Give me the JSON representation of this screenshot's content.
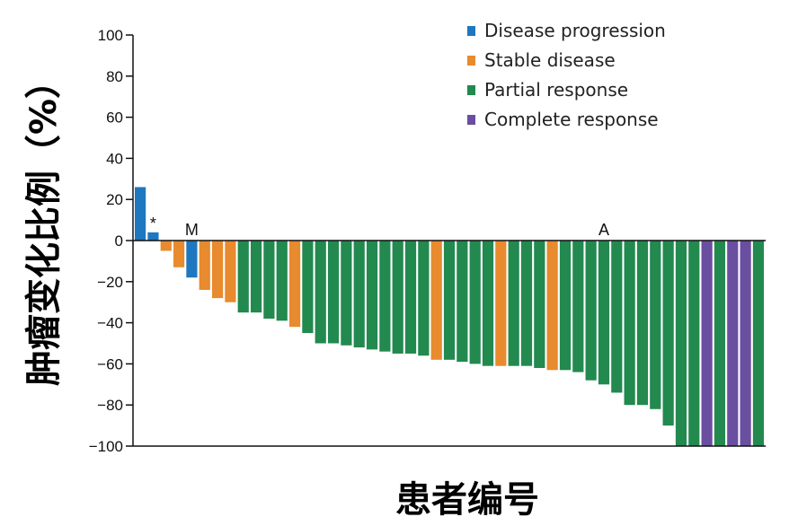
{
  "chart_data": {
    "type": "bar",
    "xlabel": "患者编号",
    "ylabel": "肿瘤变化比例（%）",
    "ylim": [
      -100,
      100
    ],
    "yticks": [
      100,
      80,
      60,
      40,
      20,
      0,
      -20,
      -40,
      -60,
      -80,
      -100
    ],
    "ytick_labels": [
      "100",
      "80",
      "60",
      "40",
      "20",
      "0",
      "−20",
      "−40",
      "−60",
      "−80",
      "−100"
    ],
    "legend_position": "top-right",
    "colors": {
      "Disease progression": "#1f77c0",
      "Stable disease": "#e88a2e",
      "Partial response": "#22894f",
      "Complete response": "#6a4ea0"
    },
    "legend": [
      "Disease progression",
      "Stable disease",
      "Partial response",
      "Complete response"
    ],
    "bars": [
      {
        "value": 26,
        "category": "Disease progression"
      },
      {
        "value": 4,
        "category": "Disease progression"
      },
      {
        "value": -5,
        "category": "Stable disease"
      },
      {
        "value": -13,
        "category": "Stable disease"
      },
      {
        "value": -18,
        "category": "Disease progression"
      },
      {
        "value": -24,
        "category": "Stable disease"
      },
      {
        "value": -28,
        "category": "Stable disease"
      },
      {
        "value": -30,
        "category": "Stable disease"
      },
      {
        "value": -35,
        "category": "Partial response"
      },
      {
        "value": -35,
        "category": "Partial response"
      },
      {
        "value": -38,
        "category": "Partial response"
      },
      {
        "value": -39,
        "category": "Partial response"
      },
      {
        "value": -42,
        "category": "Stable disease"
      },
      {
        "value": -45,
        "category": "Partial response"
      },
      {
        "value": -50,
        "category": "Partial response"
      },
      {
        "value": -50,
        "category": "Partial response"
      },
      {
        "value": -51,
        "category": "Partial response"
      },
      {
        "value": -52,
        "category": "Partial response"
      },
      {
        "value": -53,
        "category": "Partial response"
      },
      {
        "value": -54,
        "category": "Partial response"
      },
      {
        "value": -55,
        "category": "Partial response"
      },
      {
        "value": -55,
        "category": "Partial response"
      },
      {
        "value": -56,
        "category": "Partial response"
      },
      {
        "value": -58,
        "category": "Stable disease"
      },
      {
        "value": -58,
        "category": "Partial response"
      },
      {
        "value": -59,
        "category": "Partial response"
      },
      {
        "value": -60,
        "category": "Partial response"
      },
      {
        "value": -61,
        "category": "Partial response"
      },
      {
        "value": -61,
        "category": "Stable disease"
      },
      {
        "value": -61,
        "category": "Partial response"
      },
      {
        "value": -61,
        "category": "Partial response"
      },
      {
        "value": -62,
        "category": "Partial response"
      },
      {
        "value": -63,
        "category": "Stable disease"
      },
      {
        "value": -63,
        "category": "Partial response"
      },
      {
        "value": -64,
        "category": "Partial response"
      },
      {
        "value": -68,
        "category": "Partial response"
      },
      {
        "value": -70,
        "category": "Partial response"
      },
      {
        "value": -74,
        "category": "Partial response"
      },
      {
        "value": -80,
        "category": "Partial response"
      },
      {
        "value": -80,
        "category": "Partial response"
      },
      {
        "value": -82,
        "category": "Partial response"
      },
      {
        "value": -90,
        "category": "Partial response"
      },
      {
        "value": -100,
        "category": "Partial response"
      },
      {
        "value": -100,
        "category": "Partial response"
      },
      {
        "value": -100,
        "category": "Complete response"
      },
      {
        "value": -100,
        "category": "Partial response"
      },
      {
        "value": -100,
        "category": "Complete response"
      },
      {
        "value": -100,
        "category": "Complete response"
      },
      {
        "value": -100,
        "category": "Partial response"
      }
    ],
    "annotations": [
      {
        "text": "*",
        "bar_index": 1
      },
      {
        "text": "M",
        "bar_index": 4
      },
      {
        "text": "A",
        "bar_index": 36
      }
    ]
  }
}
